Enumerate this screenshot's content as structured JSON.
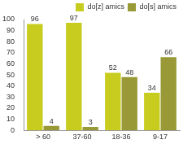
{
  "chart_data": {
    "type": "bar",
    "categories": [
      "> 60",
      "37-60",
      "18-36",
      "9-17"
    ],
    "series": [
      {
        "name": "do[z] amics",
        "color": "#c8cc1e",
        "values": [
          96,
          97,
          52,
          34
        ]
      },
      {
        "name": "do[s] amics",
        "color": "#999937",
        "values": [
          4,
          3,
          48,
          66
        ]
      }
    ],
    "ylim": [
      0,
      100
    ],
    "yticks": [
      0,
      10,
      20,
      30,
      40,
      50,
      60,
      70,
      80,
      90,
      100
    ],
    "grid": false,
    "legend": "top-right",
    "data_labels": true
  }
}
